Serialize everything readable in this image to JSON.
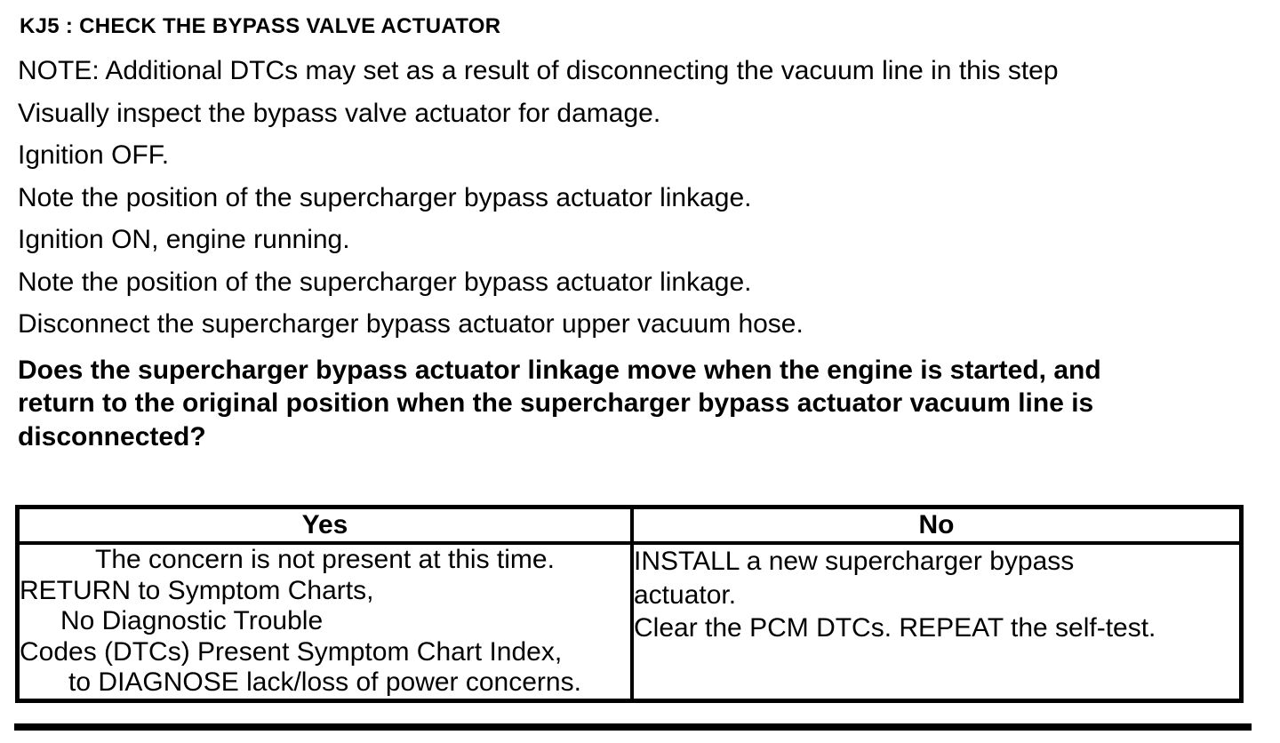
{
  "page": {
    "title": "KJ5 : CHECK THE BYPASS VALVE ACTUATOR",
    "steps": [
      "NOTE: Additional DTCs may set as a result of disconnecting the vacuum line in this step",
      "Visually inspect the bypass valve actuator for damage.",
      "Ignition OFF.",
      "Note the position of the supercharger bypass actuator linkage.",
      "Ignition ON, engine running.",
      "Note the position of the supercharger bypass actuator linkage.",
      "Disconnect the supercharger bypass actuator upper vacuum hose."
    ],
    "question_lines": [
      "Does the supercharger bypass actuator linkage move when the engine is started, and",
      "return to the original position when the supercharger bypass actuator vacuum line is",
      "disconnected?"
    ],
    "result_table": {
      "yes_header": "Yes",
      "no_header": "No",
      "yes_lines": [
        "The concern is not present at this time.",
        "RETURN to Symptom Charts,",
        "No Diagnostic Trouble",
        "Codes (DTCs) Present Symptom Chart Index,",
        "to DIAGNOSE lack/loss of power concerns."
      ],
      "no_lines": [
        "INSTALL a new supercharger bypass",
        "actuator.",
        "Clear the PCM DTCs. REPEAT the self-test."
      ]
    },
    "colors": {
      "text": "#000000",
      "background": "#ffffff",
      "table_border": "#000000"
    }
  }
}
